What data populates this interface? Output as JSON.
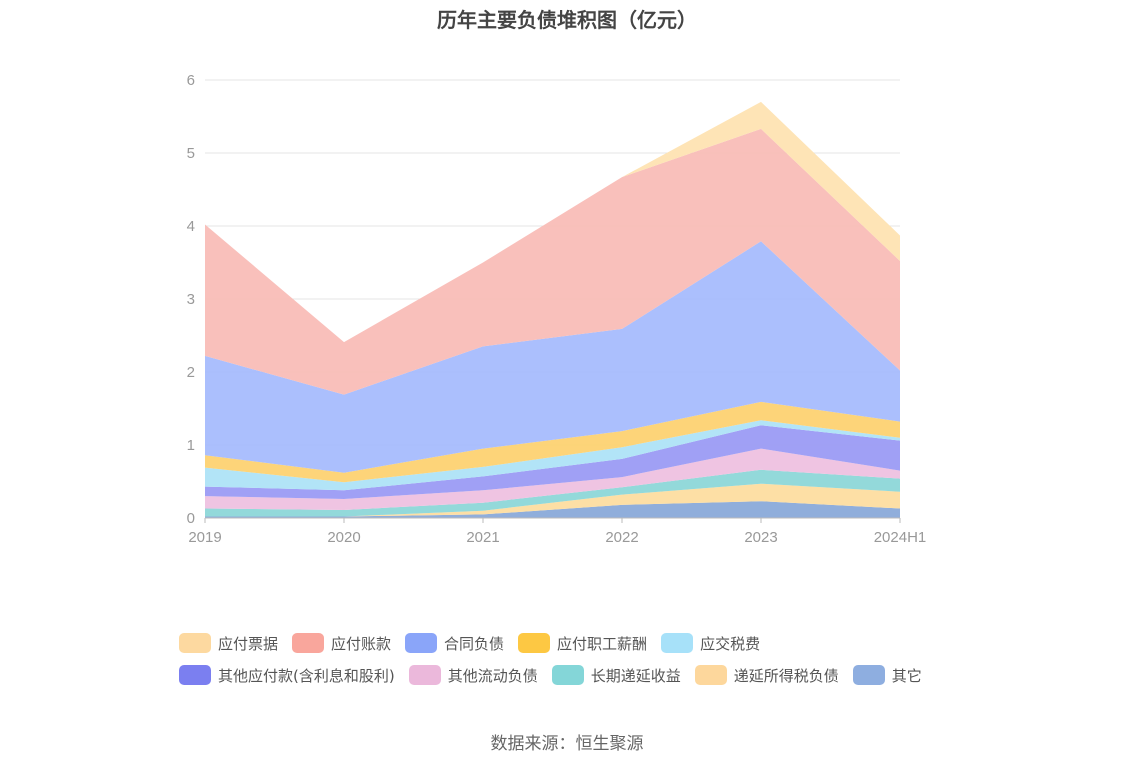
{
  "chart_data": {
    "type": "area",
    "title": "历年主要负债堆积图（亿元）",
    "categories": [
      "2019",
      "2020",
      "2021",
      "2022",
      "2023",
      "2024H1"
    ],
    "ylim": [
      0,
      6
    ],
    "yticks": [
      0,
      1,
      2,
      3,
      4,
      5,
      6
    ],
    "grid": true,
    "stacked": true,
    "legend_position": "bottom",
    "series": [
      {
        "name": "其它",
        "color": "#8aaad9",
        "values": [
          0.02,
          0.02,
          0.05,
          0.18,
          0.23,
          0.13
        ]
      },
      {
        "name": "递延所得税负债",
        "color": "#fddda0",
        "values": [
          0.0,
          0.0,
          0.05,
          0.14,
          0.24,
          0.23
        ]
      },
      {
        "name": "长期递延收益",
        "color": "#8dd7d8",
        "values": [
          0.11,
          0.09,
          0.11,
          0.1,
          0.19,
          0.18
        ]
      },
      {
        "name": "其他流动负债",
        "color": "#eec1e0",
        "values": [
          0.17,
          0.15,
          0.17,
          0.14,
          0.29,
          0.11
        ]
      },
      {
        "name": "其他应付款(含利息和股利)",
        "color": "#9b9bf4",
        "values": [
          0.13,
          0.12,
          0.19,
          0.25,
          0.32,
          0.41
        ]
      },
      {
        "name": "应交税费",
        "color": "#aee3f7",
        "values": [
          0.26,
          0.11,
          0.13,
          0.16,
          0.07,
          0.04
        ]
      },
      {
        "name": "应付职工薪酬",
        "color": "#fdd272",
        "values": [
          0.17,
          0.13,
          0.25,
          0.22,
          0.25,
          0.22
        ]
      },
      {
        "name": "合同负债",
        "color": "#a6bcfd",
        "values": [
          1.36,
          1.07,
          1.4,
          1.4,
          2.2,
          0.7
        ]
      },
      {
        "name": "应付账款",
        "color": "#f9bdb7",
        "values": [
          1.8,
          0.72,
          1.15,
          2.08,
          1.54,
          1.5
        ]
      },
      {
        "name": "应付票据",
        "color": "#fee3b2",
        "values": [
          0.0,
          0.0,
          0.0,
          0.0,
          0.37,
          0.35
        ]
      }
    ]
  },
  "legend": {
    "row1": [
      {
        "label": "应付票据",
        "color": "#fdd9a0"
      },
      {
        "label": "应付账款",
        "color": "#f9a69c"
      },
      {
        "label": "合同负债",
        "color": "#8aa5f9"
      },
      {
        "label": "应付职工薪酬",
        "color": "#fdc843"
      },
      {
        "label": "应交税费",
        "color": "#a7e1f9"
      }
    ],
    "row2": [
      {
        "label": "其他应付款(含利息和股利)",
        "color": "#7b7ff0"
      },
      {
        "label": "其他流动负债",
        "color": "#ebb8db"
      },
      {
        "label": "长期递延收益",
        "color": "#84d6d8"
      },
      {
        "label": "递延所得税负债",
        "color": "#fdd79c"
      },
      {
        "label": "其它",
        "color": "#8eaee0"
      }
    ]
  },
  "source": "数据来源：恒生聚源"
}
